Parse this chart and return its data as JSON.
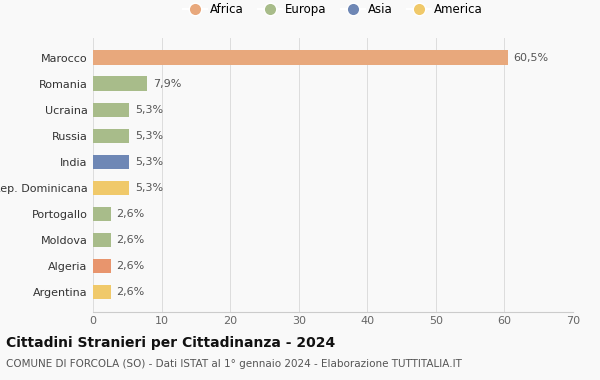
{
  "countries": [
    "Argentina",
    "Algeria",
    "Moldova",
    "Portogallo",
    "Rep. Dominicana",
    "India",
    "Russia",
    "Ucraina",
    "Romania",
    "Marocco"
  ],
  "values": [
    2.6,
    2.6,
    2.6,
    2.6,
    5.3,
    5.3,
    5.3,
    5.3,
    7.9,
    60.5
  ],
  "labels": [
    "2,6%",
    "2,6%",
    "2,6%",
    "2,6%",
    "5,3%",
    "5,3%",
    "5,3%",
    "5,3%",
    "7,9%",
    "60,5%"
  ],
  "colors": [
    "#F0C96A",
    "#E8956D",
    "#A8BC8A",
    "#A8BC8A",
    "#F0C96A",
    "#6E87B5",
    "#A8BC8A",
    "#A8BC8A",
    "#A8BC8A",
    "#E8A87C"
  ],
  "legend": [
    {
      "label": "Africa",
      "color": "#E8A87C"
    },
    {
      "label": "Europa",
      "color": "#A8BC8A"
    },
    {
      "label": "Asia",
      "color": "#6E87B5"
    },
    {
      "label": "America",
      "color": "#F0C96A"
    }
  ],
  "xlim": [
    0,
    70
  ],
  "xticks": [
    0,
    10,
    20,
    30,
    40,
    50,
    60,
    70
  ],
  "title": "Cittadini Stranieri per Cittadinanza - 2024",
  "subtitle": "COMUNE DI FORCOLA (SO) - Dati ISTAT al 1° gennaio 2024 - Elaborazione TUTTITALIA.IT",
  "background_color": "#f9f9f9",
  "bar_height": 0.55,
  "label_fontsize": 8,
  "tick_fontsize": 8,
  "title_fontsize": 10,
  "subtitle_fontsize": 7.5
}
